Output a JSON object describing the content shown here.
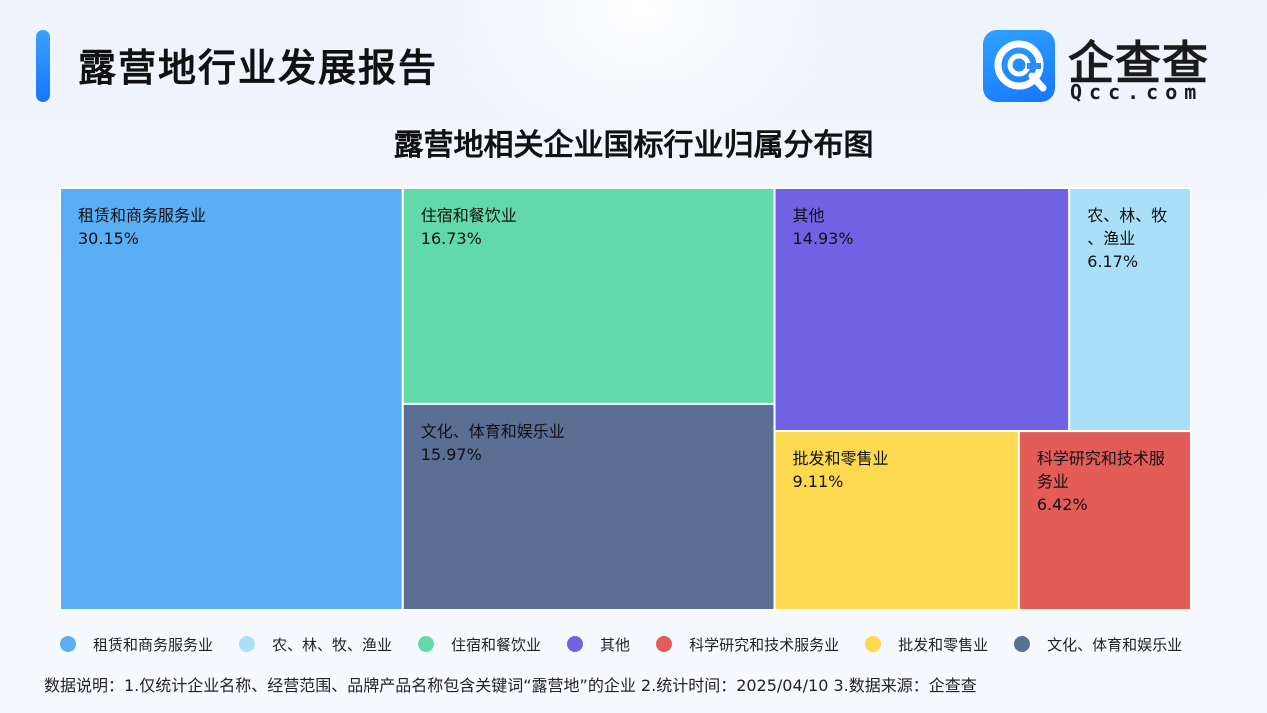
{
  "header": {
    "title": "露营地行业发展报告",
    "logo_text": "企查查",
    "logo_sub": "Qcc.com"
  },
  "chart_data": {
    "type": "treemap",
    "title": "露营地相关企业国标行业归属分布图",
    "unit": "%",
    "items": [
      {
        "name": "租赁和商务服务业",
        "value": 30.15,
        "label": "30.15%",
        "color": "#5aaef4"
      },
      {
        "name": "住宿和餐饮业",
        "value": 16.73,
        "label": "16.73%",
        "color": "#62d9a9"
      },
      {
        "name": "文化、体育和娱乐业",
        "value": 15.97,
        "label": "15.97%",
        "color": "#5b6e94"
      },
      {
        "name": "其他",
        "value": 14.93,
        "label": "14.93%",
        "color": "#6f63e4"
      },
      {
        "name": "农、林、牧、渔业",
        "value": 6.17,
        "label": "6.17%",
        "color": "#aadff9"
      },
      {
        "name": "批发和零售业",
        "value": 9.11,
        "label": "9.11%",
        "color": "#fcd94e"
      },
      {
        "name": "科学研究和技术服务业",
        "value": 6.42,
        "label": "6.42%",
        "color": "#e45c58"
      }
    ],
    "legend": [
      {
        "name": "租赁和商务服务业",
        "color": "#5aaef4"
      },
      {
        "name": "农、林、牧、渔业",
        "color": "#aadff9"
      },
      {
        "name": "住宿和餐饮业",
        "color": "#62d9a9"
      },
      {
        "name": "其他",
        "color": "#6f63e4"
      },
      {
        "name": "科学研究和技术服务业",
        "color": "#e45c58"
      },
      {
        "name": "批发和零售业",
        "color": "#fcd94e"
      },
      {
        "name": "文化、体育和娱乐业",
        "color": "#5b6e94"
      }
    ]
  },
  "footer": {
    "note": "数据说明：1.仅统计企业名称、经营范围、品牌产品名称包含关键词“露营地”的企业   2.统计时间：2025/04/10    3.数据来源：企查查"
  }
}
